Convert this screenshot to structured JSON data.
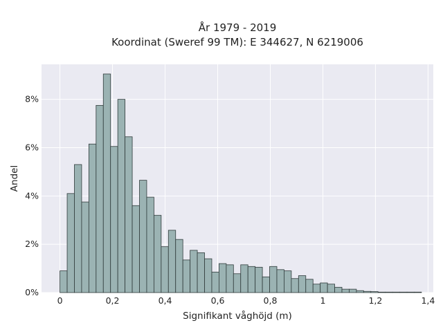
{
  "chart_data": {
    "type": "bar",
    "title_lines": [
      "År 1979 - 2019",
      "Koordinat (Sweref 99 TM): E 344627, N 6219006"
    ],
    "xlabel": "Signifikant våghöjd (m)",
    "ylabel": "Andel",
    "xlim": [
      -0.07,
      1.42
    ],
    "ylim": [
      0,
      9.45
    ],
    "x_ticks": [
      0,
      0.2,
      0.4,
      0.6,
      0.8,
      1.0,
      1.2,
      1.4
    ],
    "x_tick_labels": [
      "0",
      "0,2",
      "0,4",
      "0,6",
      "0,8",
      "1",
      "1,2",
      "1,4"
    ],
    "y_ticks": [
      0,
      2,
      4,
      6,
      8
    ],
    "y_tick_labels": [
      "0%",
      "2%",
      "4%",
      "6%",
      "8%"
    ],
    "bin_start": 0,
    "bin_width": 0.0275,
    "values": [
      0.9,
      4.1,
      5.3,
      3.75,
      6.15,
      7.75,
      9.05,
      6.05,
      8.0,
      6.45,
      3.6,
      4.65,
      3.95,
      3.2,
      1.9,
      2.58,
      2.2,
      1.35,
      1.75,
      1.65,
      1.4,
      0.85,
      1.2,
      1.15,
      0.78,
      1.15,
      1.08,
      1.05,
      0.65,
      1.08,
      0.95,
      0.9,
      0.58,
      0.7,
      0.55,
      0.35,
      0.4,
      0.35,
      0.22,
      0.14,
      0.14,
      0.08,
      0.05,
      0.04,
      0.02,
      0.02,
      0.02,
      0.02,
      0.02,
      0.02
    ],
    "grid": true,
    "colors": {
      "bar_fill": "#9bb3b3",
      "bar_edge": "#2f3a3a",
      "plot_bg": "#eaeaf2",
      "grid": "#ffffff"
    }
  }
}
